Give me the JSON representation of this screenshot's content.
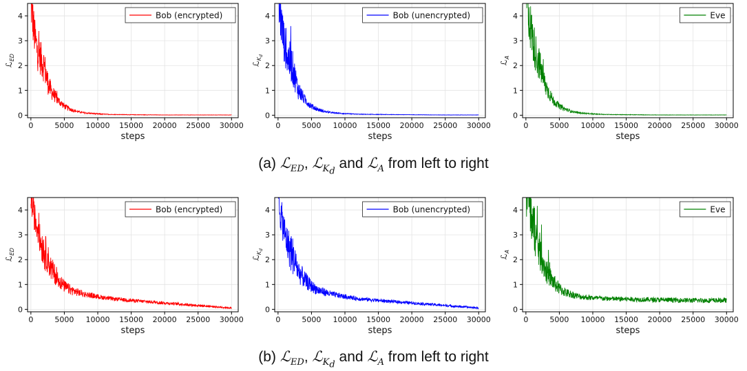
{
  "figure": {
    "captions": [
      {
        "label": "(a)",
        "l1": "ED",
        "l2": "K",
        "l2sub": "d",
        "l3": "A",
        "and": "and",
        "tail": "from left to right"
      },
      {
        "label": "(b)",
        "l1": "ED",
        "l2": "K",
        "l2sub": "d",
        "l3": "A",
        "and": "and",
        "tail": "from left to right"
      }
    ]
  },
  "chart_data": [
    {
      "type": "line",
      "row": "a",
      "xlabel": "steps",
      "ylabel": "ℒ_ED",
      "xlim": [
        -500,
        31000
      ],
      "ylim": [
        -0.1,
        4.5
      ],
      "xticks": [
        0,
        5000,
        10000,
        15000,
        20000,
        25000,
        30000
      ],
      "yticks": [
        0,
        1,
        2,
        3,
        4
      ],
      "grid": true,
      "legend_loc": "upper right",
      "series": [
        {
          "name": "Bob (encrypted)",
          "color": "#ff0000",
          "x": [
            0,
            300,
            600,
            1000,
            1500,
            2000,
            2500,
            3000,
            4000,
            5000,
            6000,
            7000,
            8000,
            10000,
            12000,
            15000,
            20000,
            25000,
            30000
          ],
          "y": [
            4.5,
            3.7,
            3.0,
            2.5,
            2.2,
            1.9,
            1.3,
            0.95,
            0.6,
            0.35,
            0.22,
            0.14,
            0.09,
            0.05,
            0.03,
            0.02,
            0.01,
            0.01,
            0.01
          ],
          "noise": [
            0.9,
            0.9,
            0.8,
            0.8,
            0.7,
            0.7,
            0.5,
            0.35,
            0.2,
            0.12,
            0.08,
            0.05,
            0.03,
            0.02,
            0.01,
            0.01,
            0.005,
            0.005,
            0.005
          ]
        }
      ]
    },
    {
      "type": "line",
      "row": "a",
      "xlabel": "steps",
      "ylabel": "ℒ_Kd",
      "xlim": [
        -500,
        31000
      ],
      "ylim": [
        -0.1,
        4.5
      ],
      "xticks": [
        0,
        5000,
        10000,
        15000,
        20000,
        25000,
        30000
      ],
      "yticks": [
        0,
        1,
        2,
        3,
        4
      ],
      "grid": true,
      "legend_loc": "upper right",
      "series": [
        {
          "name": "Bob (unencrypted)",
          "color": "#0000ff",
          "x": [
            0,
            300,
            600,
            1000,
            1500,
            2000,
            2500,
            3000,
            4000,
            5000,
            6000,
            7000,
            8000,
            10000,
            12000,
            15000,
            20000,
            25000,
            30000
          ],
          "y": [
            4.5,
            4.0,
            3.4,
            2.7,
            2.2,
            2.0,
            1.5,
            1.0,
            0.6,
            0.35,
            0.22,
            0.14,
            0.1,
            0.06,
            0.04,
            0.03,
            0.02,
            0.01,
            0.01
          ],
          "noise": [
            1.0,
            1.0,
            0.9,
            0.8,
            0.8,
            0.8,
            0.6,
            0.4,
            0.2,
            0.12,
            0.08,
            0.05,
            0.03,
            0.02,
            0.01,
            0.01,
            0.005,
            0.005,
            0.005
          ]
        }
      ]
    },
    {
      "type": "line",
      "row": "a",
      "xlabel": "steps",
      "ylabel": "ℒ_A",
      "xlim": [
        -500,
        31000
      ],
      "ylim": [
        -0.1,
        4.5
      ],
      "xticks": [
        0,
        5000,
        10000,
        15000,
        20000,
        25000,
        30000
      ],
      "yticks": [
        0,
        1,
        2,
        3,
        4
      ],
      "grid": true,
      "legend_loc": "upper right",
      "series": [
        {
          "name": "Eve",
          "color": "#008000",
          "x": [
            0,
            300,
            600,
            1000,
            1500,
            2000,
            2500,
            3000,
            4000,
            5000,
            6000,
            7000,
            8000,
            10000,
            12000,
            15000,
            20000,
            25000,
            30000
          ],
          "y": [
            4.5,
            4.5,
            3.6,
            3.0,
            2.4,
            2.0,
            1.5,
            1.1,
            0.6,
            0.35,
            0.22,
            0.14,
            0.09,
            0.05,
            0.03,
            0.02,
            0.01,
            0.01,
            0.01
          ],
          "noise": [
            1.2,
            1.2,
            1.0,
            0.9,
            0.8,
            0.7,
            0.5,
            0.4,
            0.2,
            0.12,
            0.08,
            0.05,
            0.03,
            0.02,
            0.01,
            0.01,
            0.005,
            0.005,
            0.005
          ]
        }
      ]
    },
    {
      "type": "line",
      "row": "b",
      "xlabel": "steps",
      "ylabel": "ℒ_ED",
      "xlim": [
        -500,
        31000
      ],
      "ylim": [
        -0.1,
        4.5
      ],
      "xticks": [
        0,
        5000,
        10000,
        15000,
        20000,
        25000,
        30000
      ],
      "yticks": [
        0,
        1,
        2,
        3,
        4
      ],
      "grid": true,
      "legend_loc": "upper right",
      "series": [
        {
          "name": "Bob (encrypted)",
          "color": "#ff0000",
          "x": [
            0,
            300,
            600,
            1000,
            1500,
            2000,
            2500,
            3000,
            4000,
            5000,
            6000,
            8000,
            10000,
            12000,
            15000,
            20000,
            25000,
            30000
          ],
          "y": [
            4.5,
            4.0,
            3.6,
            3.2,
            2.6,
            2.3,
            2.0,
            1.6,
            1.2,
            0.9,
            0.75,
            0.6,
            0.5,
            0.42,
            0.35,
            0.25,
            0.15,
            0.05
          ],
          "noise": [
            0.7,
            0.6,
            0.6,
            0.6,
            0.6,
            0.8,
            0.6,
            0.5,
            0.35,
            0.25,
            0.2,
            0.12,
            0.1,
            0.08,
            0.07,
            0.06,
            0.05,
            0.03
          ]
        }
      ]
    },
    {
      "type": "line",
      "row": "b",
      "xlabel": "steps",
      "ylabel": "ℒ_Kd",
      "xlim": [
        -500,
        31000
      ],
      "ylim": [
        -0.1,
        4.5
      ],
      "xticks": [
        0,
        5000,
        10000,
        15000,
        20000,
        25000,
        30000
      ],
      "yticks": [
        0,
        1,
        2,
        3,
        4
      ],
      "grid": true,
      "legend_loc": "upper right",
      "series": [
        {
          "name": "Bob (unencrypted)",
          "color": "#0000ff",
          "x": [
            0,
            300,
            600,
            1000,
            1500,
            2000,
            2500,
            3000,
            4000,
            5000,
            6000,
            8000,
            10000,
            12000,
            15000,
            20000,
            25000,
            30000
          ],
          "y": [
            4.5,
            3.9,
            3.5,
            3.0,
            2.5,
            2.2,
            1.9,
            1.5,
            1.15,
            0.9,
            0.75,
            0.6,
            0.5,
            0.42,
            0.35,
            0.25,
            0.15,
            0.05
          ],
          "noise": [
            0.8,
            0.7,
            0.7,
            0.7,
            0.7,
            0.9,
            0.6,
            0.5,
            0.35,
            0.25,
            0.2,
            0.12,
            0.1,
            0.08,
            0.07,
            0.06,
            0.05,
            0.03
          ]
        }
      ]
    },
    {
      "type": "line",
      "row": "b",
      "xlabel": "steps",
      "ylabel": "ℒ_A",
      "xlim": [
        -500,
        31000
      ],
      "ylim": [
        -0.1,
        4.5
      ],
      "xticks": [
        0,
        5000,
        10000,
        15000,
        20000,
        25000,
        30000
      ],
      "yticks": [
        0,
        1,
        2,
        3,
        4
      ],
      "grid": true,
      "legend_loc": "upper right",
      "series": [
        {
          "name": "Eve",
          "color": "#008000",
          "x": [
            0,
            300,
            600,
            1000,
            1500,
            2000,
            2500,
            3000,
            4000,
            5000,
            6000,
            8000,
            10000,
            12000,
            15000,
            20000,
            25000,
            30000
          ],
          "y": [
            4.5,
            4.5,
            4.0,
            3.4,
            2.8,
            2.3,
            1.9,
            1.5,
            1.1,
            0.8,
            0.65,
            0.5,
            0.45,
            0.42,
            0.4,
            0.37,
            0.35,
            0.35
          ],
          "noise": [
            1.2,
            1.2,
            1.1,
            1.0,
            0.9,
            0.8,
            0.6,
            0.5,
            0.35,
            0.25,
            0.18,
            0.12,
            0.1,
            0.1,
            0.1,
            0.1,
            0.1,
            0.1
          ]
        }
      ]
    }
  ]
}
